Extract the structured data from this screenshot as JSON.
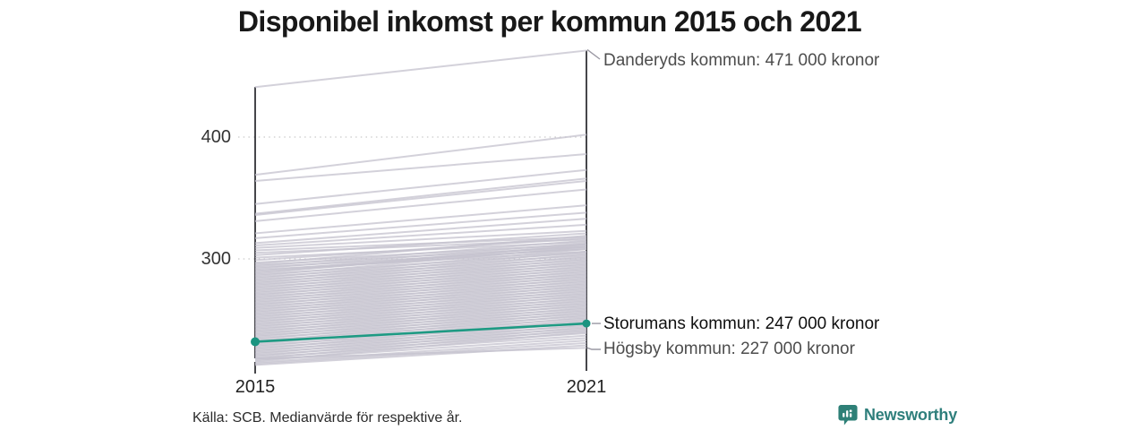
{
  "title": "Disponibel inkomst per kommun 2015 och 2021",
  "source": "Källa: SCB. Medianvärde för respektive år.",
  "brand": {
    "name": "Newsworthy",
    "color": "#2e8077"
  },
  "colors": {
    "highlight": "#1d9a83",
    "line_gray": "#c4c2ce",
    "axis": "#17171d"
  },
  "chart_data": {
    "type": "line",
    "subtype": "slope",
    "x": [
      2015,
      2021
    ],
    "unit_suffix": "000 kronor",
    "yticks": [
      {
        "value": 400,
        "label": "400"
      },
      {
        "value": 300,
        "label": "300"
      }
    ],
    "grid": true,
    "highlight": {
      "name": "Storumans kommun",
      "values": [
        232,
        247
      ],
      "label": "Storumans kommun: 247 000 kronor",
      "color": "#1d9a83"
    },
    "labeled": [
      {
        "name": "Danderyds kommun",
        "values": [
          441,
          471
        ],
        "label": "Danderyds kommun: 471 000 kronor"
      },
      {
        "name": "Högsby kommun",
        "values": [
          218,
          227
        ],
        "label": "Högsby kommun: 227 000 kronor"
      }
    ],
    "background_lines": [
      [
        369,
        402
      ],
      [
        364,
        386
      ],
      [
        345,
        373
      ],
      [
        337,
        366
      ],
      [
        336,
        364
      ],
      [
        331,
        357
      ],
      [
        321,
        344
      ],
      [
        317,
        338
      ],
      [
        313,
        333
      ],
      [
        311,
        328
      ],
      [
        309,
        323
      ],
      [
        307,
        318
      ],
      [
        305,
        316
      ],
      [
        303,
        321
      ],
      [
        301,
        314
      ],
      [
        299,
        317
      ],
      [
        297,
        312
      ],
      [
        296,
        319
      ],
      [
        295,
        310
      ],
      [
        294,
        315
      ],
      [
        293,
        308
      ],
      [
        292,
        313
      ],
      [
        291,
        306
      ],
      [
        290,
        311
      ],
      [
        289,
        309
      ],
      [
        288,
        312
      ],
      [
        287,
        305
      ],
      [
        286,
        310
      ],
      [
        285,
        303
      ],
      [
        284,
        308
      ],
      [
        283,
        301
      ],
      [
        282,
        306
      ],
      [
        281,
        299
      ],
      [
        280,
        304
      ],
      [
        279,
        297
      ],
      [
        278,
        302
      ],
      [
        277,
        295
      ],
      [
        276,
        300
      ],
      [
        275,
        293
      ],
      [
        274,
        298
      ],
      [
        273,
        291
      ],
      [
        272,
        296
      ],
      [
        271,
        289
      ],
      [
        270,
        294
      ],
      [
        269,
        287
      ],
      [
        268,
        292
      ],
      [
        267,
        285
      ],
      [
        266,
        290
      ],
      [
        265,
        283
      ],
      [
        264,
        288
      ],
      [
        263,
        281
      ],
      [
        262,
        286
      ],
      [
        261,
        279
      ],
      [
        260,
        284
      ],
      [
        259,
        277
      ],
      [
        258,
        282
      ],
      [
        257,
        275
      ],
      [
        256,
        280
      ],
      [
        255,
        273
      ],
      [
        254,
        278
      ],
      [
        253,
        271
      ],
      [
        252,
        276
      ],
      [
        251,
        269
      ],
      [
        250,
        274
      ],
      [
        249,
        267
      ],
      [
        248,
        272
      ],
      [
        247,
        265
      ],
      [
        246,
        270
      ],
      [
        245,
        263
      ],
      [
        244,
        268
      ],
      [
        243,
        261
      ],
      [
        242,
        266
      ],
      [
        241,
        259
      ],
      [
        240,
        264
      ],
      [
        239,
        257
      ],
      [
        238,
        262
      ],
      [
        237,
        255
      ],
      [
        236,
        260
      ],
      [
        235,
        253
      ],
      [
        234,
        258
      ],
      [
        233,
        251
      ],
      [
        232,
        256
      ],
      [
        231,
        249
      ],
      [
        230,
        254
      ],
      [
        229,
        247
      ],
      [
        228,
        252
      ],
      [
        227,
        245
      ],
      [
        226,
        250
      ],
      [
        225,
        243
      ],
      [
        224,
        248
      ],
      [
        223,
        241
      ],
      [
        222,
        246
      ],
      [
        221,
        239
      ],
      [
        220,
        244
      ],
      [
        219,
        237
      ],
      [
        218,
        242
      ],
      [
        217,
        235
      ],
      [
        216,
        240
      ],
      [
        215,
        233
      ],
      [
        214,
        231
      ],
      [
        213,
        229
      ]
    ]
  }
}
